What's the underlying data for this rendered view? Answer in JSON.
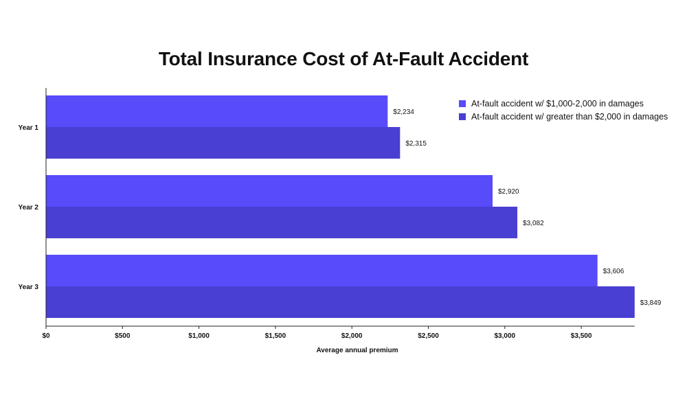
{
  "chart_data": {
    "type": "bar",
    "orientation": "horizontal",
    "title": "Total Insurance Cost of At-Fault Accident",
    "xlabel": "Average annual premium",
    "ylabel": "",
    "categories": [
      "Year 1",
      "Year 2",
      "Year 3"
    ],
    "series": [
      {
        "name": "At-fault accident w/ $1,000-2,000 in damages",
        "color": "#574bfa",
        "values": [
          2234,
          2920,
          3606
        ],
        "labels": [
          "$2,234",
          "$2,920",
          "$3,606"
        ]
      },
      {
        "name": "At-fault accident w/ greater than $2,000 in damages",
        "color": "#4a3fd3",
        "values": [
          2315,
          3082,
          3849
        ],
        "labels": [
          "$2,315",
          "$3,082",
          "$3,849"
        ]
      }
    ],
    "xlim": [
      0,
      3849
    ],
    "xticks": [
      0,
      500,
      1000,
      1500,
      2000,
      2500,
      3000,
      3500
    ],
    "xtick_labels": [
      "$0",
      "$500",
      "$1,000",
      "$1,500",
      "$2,000",
      "$2,500",
      "$3,000",
      "$3,500"
    ],
    "grid": false,
    "legend_position": "top-right"
  }
}
